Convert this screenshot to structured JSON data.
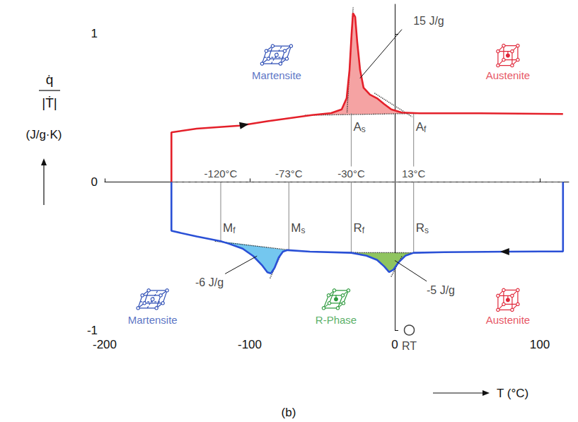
{
  "chart_data": {
    "type": "line",
    "xlabel": "T (°C)",
    "ylabel": {
      "numerator": "q̇",
      "denominator": "|Ṫ|",
      "unit": "(J/g·K)"
    },
    "caption": "(b)",
    "xlim": [
      -200,
      120
    ],
    "xticks": [
      -200,
      -100,
      0,
      100
    ],
    "ylim": [
      -1,
      1.2
    ],
    "yticks": [
      -1,
      0,
      1
    ],
    "grid": false,
    "series": [
      {
        "color": "#e4202a",
        "x": [
          -154,
          -154,
          -136.6,
          -107,
          -87.8,
          -57,
          -43.9,
          -36.6,
          -33.2,
          -31.2,
          -29.8,
          -28.8,
          -27.3,
          -25.9,
          -23.9,
          -21.5,
          -17.1,
          -12.2,
          -7.3,
          -2.4,
          4.9,
          17,
          58.5,
          116
        ],
        "values": [
          0,
          0.335,
          0.36,
          0.38,
          0.41,
          0.452,
          0.465,
          0.49,
          0.565,
          0.756,
          0.995,
          1.14,
          1.115,
          0.947,
          0.756,
          0.636,
          0.59,
          0.565,
          0.526,
          0.49,
          0.469,
          0.464,
          0.464,
          0.459
        ],
        "arrow": {
          "from": [
            -110,
            0.375
          ],
          "to": [
            -104,
            0.385
          ]
        }
      },
      {
        "color": "#2a50d6",
        "x": [
          -154,
          -154,
          -136.6,
          -120,
          -114.6,
          -104.9,
          -97.6,
          -91.7,
          -87.8,
          -85.4,
          -82.9,
          -80,
          -77.1,
          -74,
          -58.5,
          -30,
          -19.5,
          -12.2,
          -7.3,
          -3.9,
          -1,
          2.4,
          7.3,
          13,
          34,
          78,
          116,
          116
        ],
        "values": [
          0,
          -0.33,
          -0.368,
          -0.4,
          -0.416,
          -0.45,
          -0.5,
          -0.56,
          -0.61,
          -0.617,
          -0.58,
          -0.51,
          -0.47,
          -0.46,
          -0.47,
          -0.478,
          -0.498,
          -0.526,
          -0.57,
          -0.608,
          -0.593,
          -0.545,
          -0.498,
          -0.478,
          -0.474,
          -0.47,
          -0.469,
          0
        ],
        "arrow": {
          "from": [
            82,
            -0.47
          ],
          "to": [
            76,
            -0.47
          ]
        }
      }
    ],
    "fills": [
      {
        "series": 0,
        "from": -57,
        "to": 17,
        "color": "#f5a3a3",
        "label": "15 J/g",
        "label_x": 23.4,
        "label_y": 1.09,
        "leader": [
          [
            4.9,
            1.03
          ],
          [
            -24,
            0.7
          ]
        ]
      },
      {
        "series": 1,
        "from": -120,
        "to": -74,
        "color": "#74c7ef",
        "label": "-6 J/g",
        "label_x": -127.8,
        "label_y": -0.68,
        "leader": [
          [
            -117,
            -0.62
          ],
          [
            -95,
            -0.5
          ]
        ]
      },
      {
        "series": 1,
        "from": -30,
        "to": 13,
        "color": "#8fc45f",
        "label": "-5 J/g",
        "label_x": 31.7,
        "label_y": -0.73,
        "leader": [
          [
            22,
            -0.67
          ],
          [
            0,
            -0.53
          ]
        ]
      }
    ],
    "guides": [
      {
        "line_style": "dashed",
        "points": [
          [
            -154,
            0
          ],
          [
            116,
            0
          ]
        ]
      },
      {
        "line_style": "dotted",
        "points": [
          [
            -62,
            0.45
          ],
          [
            22,
            0.464
          ]
        ]
      },
      {
        "line_style": "dotted",
        "points": [
          [
            -32.9,
            0.47
          ],
          [
            -28.7,
            1.18
          ]
        ]
      },
      {
        "line_style": "dotted",
        "points": [
          [
            -14,
            0.6
          ],
          [
            12,
            0.44
          ]
        ]
      },
      {
        "line_style": "dotted",
        "points": [
          [
            -124,
            -0.4
          ],
          [
            -70,
            -0.462
          ]
        ]
      },
      {
        "line_style": "dotted",
        "points": [
          [
            -86,
            -0.65
          ],
          [
            -79,
            -0.5
          ]
        ]
      },
      {
        "line_style": "dotted",
        "points": [
          [
            -35,
            -0.476
          ],
          [
            18,
            -0.478
          ]
        ]
      },
      {
        "line_style": "dotted",
        "points": [
          [
            -2.5,
            -0.64
          ],
          [
            5,
            -0.5
          ]
        ]
      }
    ],
    "transitions": [
      {
        "x": -120,
        "temp_label": "-120°C",
        "y_from": 0,
        "y_to": -0.4,
        "marks": [
          {
            "text": "Mf",
            "y": -0.31
          }
        ]
      },
      {
        "x": -73,
        "temp_label": "-73°C",
        "y_from": 0,
        "y_to": -0.46,
        "marks": [
          {
            "text": "Ms",
            "y": -0.31
          }
        ]
      },
      {
        "x": -30,
        "temp_label": "-30°C",
        "y_from": 0.465,
        "y_to": -0.478,
        "marks": [
          {
            "text": "As",
            "y": 0.37
          },
          {
            "text": "Rf",
            "y": -0.31
          }
        ]
      },
      {
        "x": 13,
        "temp_label": "13°C",
        "y_from": 0.464,
        "y_to": -0.478,
        "marks": [
          {
            "text": "Af",
            "y": 0.37
          },
          {
            "text": "Rs",
            "y": -0.31
          }
        ]
      }
    ],
    "phases": [
      {
        "text": "Martensite",
        "x": -81.5,
        "y": 0.72,
        "color": "#2f4fb5",
        "marker": "monoclinic"
      },
      {
        "text": "Austenite",
        "x": 78,
        "y": 0.72,
        "color": "#e0283a",
        "marker": "cubic"
      },
      {
        "text": "Martensite",
        "x": -167,
        "y": -0.93,
        "color": "#2f4fb5",
        "marker": "monoclinic"
      },
      {
        "text": "R-Phase",
        "x": -40.5,
        "y": -0.93,
        "color": "#2e9a3e",
        "marker": "rhombohedral"
      },
      {
        "text": "Austenite",
        "x": 78,
        "y": -0.93,
        "color": "#e0283a",
        "marker": "cubic"
      }
    ],
    "reference": {
      "text": "RT",
      "x": 10,
      "y": -1
    }
  }
}
